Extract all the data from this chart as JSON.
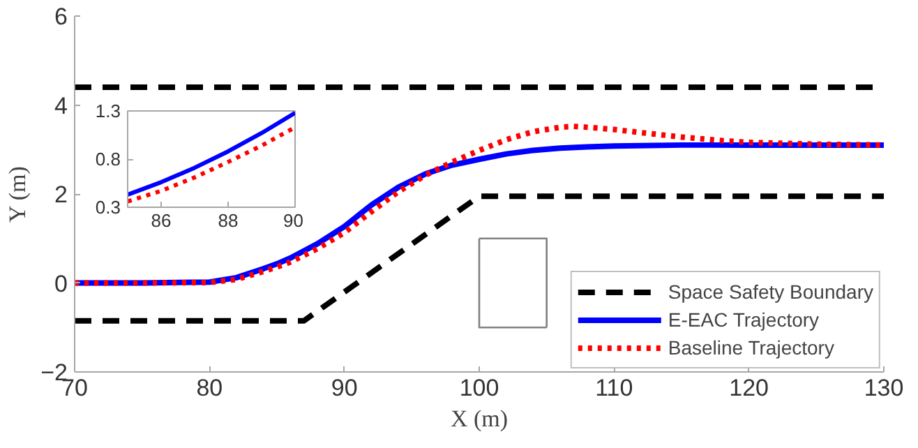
{
  "chart_data": [
    {
      "type": "line",
      "xlabel": "X (m)",
      "ylabel": "Y (m)",
      "xlim": [
        70,
        130
      ],
      "ylim": [
        -2,
        6
      ],
      "xticks": [
        70,
        80,
        90,
        100,
        110,
        120,
        130
      ],
      "yticks": [
        -2,
        0,
        2,
        4,
        6
      ],
      "grid": false,
      "legend": "bottom right",
      "series": [
        {
          "name": "Space Safety Boundary",
          "color": "#000000",
          "line_style": "dashed",
          "x": [
            70,
            130
          ],
          "values": [
            4.4,
            4.4
          ]
        },
        {
          "color": "#000000",
          "line_style": "dashed",
          "x": [
            70,
            87,
            100,
            130
          ],
          "values": [
            -0.85,
            -0.85,
            1.95,
            1.95
          ]
        },
        {
          "name": "E-EAC Trajectory",
          "color": "#0000ff",
          "line_style": "solid",
          "x": [
            70,
            75,
            80,
            82,
            84,
            85,
            86,
            88,
            90,
            92,
            94,
            96,
            98,
            100,
            102,
            104,
            106,
            108,
            110,
            115,
            120,
            125,
            130
          ],
          "values": [
            0,
            0,
            0.02,
            0.12,
            0.32,
            0.43,
            0.56,
            0.88,
            1.27,
            1.75,
            2.15,
            2.45,
            2.65,
            2.78,
            2.9,
            2.98,
            3.03,
            3.06,
            3.08,
            3.1,
            3.1,
            3.1,
            3.1
          ]
        },
        {
          "name": "Baseline Trajectory",
          "color": "#ff0000",
          "line_style": "dotted",
          "x": [
            70,
            75,
            80,
            82,
            84,
            85,
            86,
            88,
            90,
            92,
            94,
            96,
            98,
            100,
            102,
            104,
            106,
            107,
            108,
            110,
            112,
            115,
            118,
            120,
            125,
            130
          ],
          "values": [
            0,
            0,
            0.01,
            0.08,
            0.26,
            0.36,
            0.47,
            0.77,
            1.13,
            1.6,
            2.05,
            2.42,
            2.72,
            2.98,
            3.22,
            3.4,
            3.5,
            3.52,
            3.5,
            3.45,
            3.38,
            3.28,
            3.2,
            3.16,
            3.12,
            3.1
          ]
        },
        {
          "color": "#808080",
          "line_style": "solid",
          "x": [
            100,
            100,
            105
          ],
          "values": [
            1,
            -1,
            -1
          ]
        },
        {
          "color": "#808080",
          "line_style": "solid",
          "x": [
            100,
            105,
            105
          ],
          "values": [
            1,
            1,
            -1
          ]
        }
      ]
    },
    {
      "type": "line",
      "xlim": [
        85,
        90
      ],
      "ylim": [
        0.3,
        1.3
      ],
      "xticks": [
        86,
        88,
        90
      ],
      "yticks": [
        0.3,
        0.8,
        1.3
      ],
      "grid": false,
      "legend": false,
      "series": [
        {
          "color": "#0000ff",
          "line_style": "solid",
          "x": [
            85,
            86,
            87,
            88,
            89,
            90
          ],
          "values": [
            0.43,
            0.56,
            0.71,
            0.88,
            1.07,
            1.28
          ]
        },
        {
          "color": "#ff0000",
          "line_style": "dotted",
          "x": [
            85,
            86,
            87,
            88,
            89,
            90
          ],
          "values": [
            0.36,
            0.47,
            0.61,
            0.77,
            0.94,
            1.13
          ]
        }
      ]
    }
  ]
}
